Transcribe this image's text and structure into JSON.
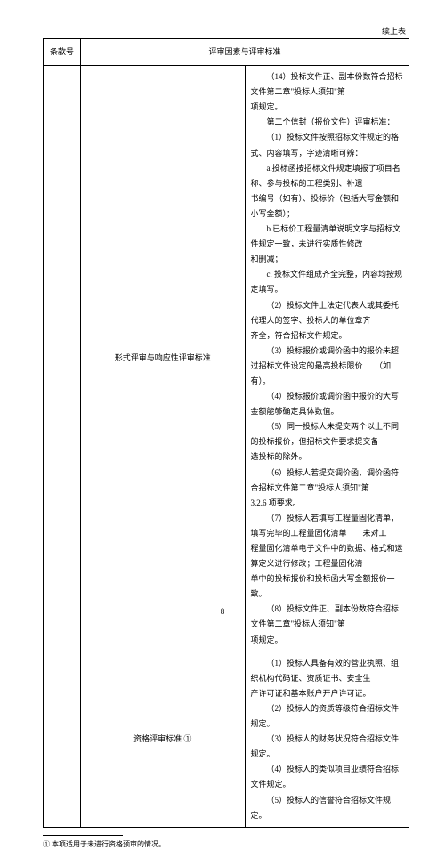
{
  "continuedLabel": "续上表",
  "header": {
    "colA": "条款号",
    "colB": "评审因素与评审标准"
  },
  "row1": {
    "mid": "形式评审与响应性评审标准",
    "lines": [
      {
        "cls": "indent1",
        "text": "（14）投标文件正、副本份数符合招标文件第二章\"投标人须知\"第"
      },
      {
        "cls": "",
        "text": "项规定。"
      },
      {
        "cls": "indent1",
        "text": "第二个信封（报价文件）评审标准："
      },
      {
        "cls": "indent1",
        "text": "（1）投标文件按照招标文件规定的格式、内容填写，字迹清晰可辨："
      },
      {
        "cls": "indent1",
        "text": "a.投标函按招标文件规定填报了项目名称、参与投标的工程类别、补遗"
      },
      {
        "cls": "",
        "text": "书编号（如有）、投标价（包括大写金额和小写金额）；"
      },
      {
        "cls": "indent1",
        "text": "b.已标价工程量清单说明文字与招标文件规定一致，未进行实质性修改"
      },
      {
        "cls": "",
        "text": "和删减；"
      },
      {
        "cls": "indent1",
        "text": "c. 投标文件组成齐全完整，内容均按规定填写。"
      },
      {
        "cls": "indent1",
        "text": "（2）投标文件上法定代表人或其委托代理人的签字、投标人的单位章齐"
      },
      {
        "cls": "",
        "text": "齐全，符合招标文件规定。"
      },
      {
        "cls": "indent1",
        "text": "（3）投标报价或调价函中的报价未超过招标文件设定的最高投标限价　　（如"
      },
      {
        "cls": "",
        "text": "有）。"
      },
      {
        "cls": "indent1",
        "text": "（4）投标报价或调价函中报价的大写金额能够确定具体数值。"
      },
      {
        "cls": "indent1",
        "text": "（5）同一投标人未提交两个以上不同的投标报价，但招标文件要求提交备"
      },
      {
        "cls": "",
        "text": "选投标的除外。"
      },
      {
        "cls": "indent1",
        "text": "（6）投标人若提交调价函，调价函符合招标文件第二章\"投标人须知\"第"
      },
      {
        "cls": "",
        "text": "3.2.6 项要求。"
      },
      {
        "cls": "indent1",
        "text": "（7）投标人若填写工程量固化清单，填写完毕的工程量固化清单　　未对工"
      },
      {
        "cls": "",
        "text": "程量固化清单电子文件中的数据、格式和运算定义进行修改；工程量固化清"
      },
      {
        "cls": "",
        "text": "单中的投标报价和投标函大写金额报价一致。"
      },
      {
        "cls": "indent1",
        "text": "（8）投标文件正、副本份数符合招标文件第二章\"投标人须知\"第"
      },
      {
        "cls": "",
        "text": "项规定。"
      }
    ]
  },
  "row2": {
    "mid": "资格评审标准 ①",
    "lines": [
      {
        "cls": "indent1",
        "text": "（1）投标人具备有效的营业执照、组织机构代码证、资质证书、安全生"
      },
      {
        "cls": "",
        "text": "产许可证和基本账户开户许可证。"
      },
      {
        "cls": "indent1",
        "text": "（2）投标人的资质等级符合招标文件规定。"
      },
      {
        "cls": "indent1",
        "text": "（3）投标人的财务状况符合招标文件规定。"
      },
      {
        "cls": "indent1",
        "text": "（4）投标人的类似项目业绩符合招标文件规定。"
      },
      {
        "cls": "indent1",
        "text": "（5）投标人的信誉符合招标文件规定。"
      }
    ]
  },
  "footnote": "① 本项适用于未进行资格预审的情况。",
  "pageNumber": "8"
}
